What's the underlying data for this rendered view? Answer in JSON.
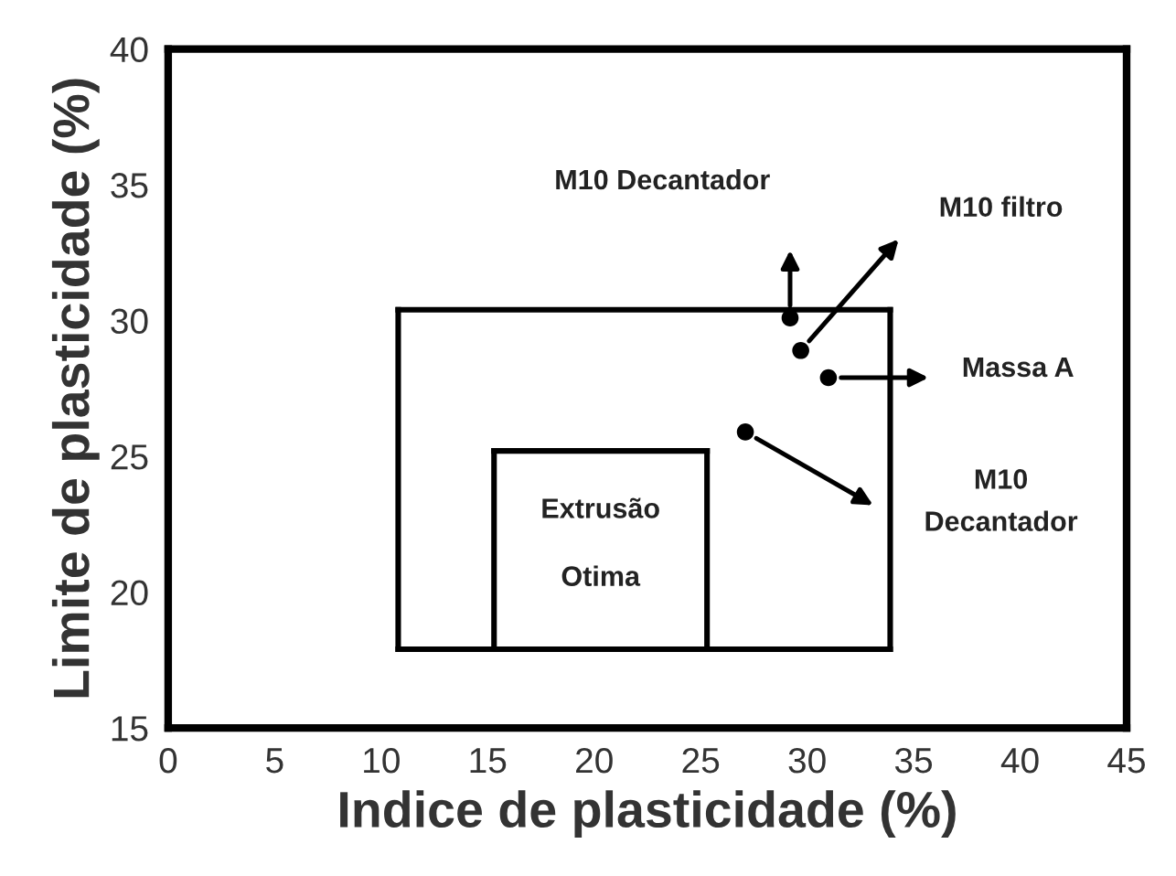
{
  "chart_data": {
    "type": "scatter",
    "xlabel": "Indice de plasticidade (%)",
    "ylabel": "Limite de plasticidade (%)",
    "xlim": [
      0,
      45
    ],
    "ylim": [
      15,
      40
    ],
    "xticks": [
      0,
      5,
      10,
      15,
      20,
      25,
      30,
      35,
      40,
      45
    ],
    "yticks": [
      15,
      20,
      25,
      30,
      35,
      40
    ],
    "grid": false,
    "legend": false,
    "marker": "circle",
    "series": [
      {
        "color": "#000000",
        "x": [
          29.2,
          29.7,
          31.0,
          27.1
        ],
        "values": [
          30.1,
          28.9,
          27.9,
          25.9
        ]
      },
      {
        "type": "line",
        "color": "#000000",
        "marker": "none",
        "x": [
          10.8,
          33.9
        ],
        "values": [
          17.9,
          17.9
        ]
      },
      {
        "type": "line",
        "color": "#000000",
        "marker": "none",
        "x": [
          10.8,
          33.9
        ],
        "values": [
          30.4,
          30.4
        ]
      },
      {
        "type": "line",
        "color": "#000000",
        "marker": "none",
        "x": [
          10.8,
          10.8
        ],
        "values": [
          17.9,
          30.4
        ]
      },
      {
        "type": "line",
        "color": "#000000",
        "marker": "none",
        "x": [
          33.9,
          33.9
        ],
        "values": [
          17.9,
          30.4
        ]
      },
      {
        "type": "line",
        "color": "#000000",
        "marker": "none",
        "x": [
          15.3,
          25.3
        ],
        "values": [
          25.2,
          25.2
        ]
      },
      {
        "type": "line",
        "color": "#000000",
        "marker": "none",
        "x": [
          15.3,
          15.3
        ],
        "values": [
          17.9,
          25.2
        ]
      },
      {
        "type": "line",
        "color": "#000000",
        "marker": "none",
        "x": [
          25.3,
          25.3
        ],
        "values": [
          17.9,
          25.2
        ]
      }
    ],
    "annotations": [
      "M10 Decantador",
      "M10 filtro",
      "Massa A",
      "M10\nDecantador",
      "Extrusão",
      "Otima"
    ]
  }
}
